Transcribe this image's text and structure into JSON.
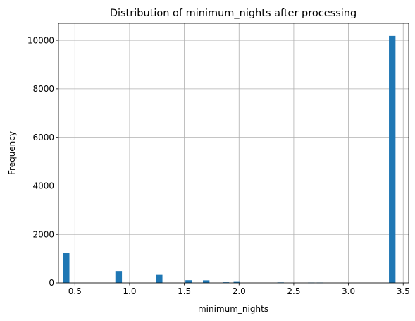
{
  "chart_data": {
    "type": "bar",
    "title": "Distribution of minimum_nights after processing",
    "xlabel": "minimum_nights",
    "ylabel": "Frequency",
    "xlim": [
      0.35,
      3.55
    ],
    "ylim": [
      0,
      10700
    ],
    "xticks": [
      0.5,
      1.0,
      1.5,
      2.0,
      2.5,
      3.0,
      3.5
    ],
    "xtick_labels": [
      "0.5",
      "1.0",
      "1.5",
      "2.0",
      "2.5",
      "3.0",
      "3.5"
    ],
    "yticks": [
      0,
      2000,
      4000,
      6000,
      8000,
      10000
    ],
    "ytick_labels": [
      "0",
      "2000",
      "4000",
      "6000",
      "8000",
      "10000"
    ],
    "grid": true,
    "bar_color": "#1f77b4",
    "bin_width": 0.06,
    "bins": [
      {
        "x": 0.42,
        "value": 1240
      },
      {
        "x": 0.9,
        "value": 490
      },
      {
        "x": 1.27,
        "value": 330
      },
      {
        "x": 1.54,
        "value": 110
      },
      {
        "x": 1.7,
        "value": 105
      },
      {
        "x": 1.88,
        "value": 25
      },
      {
        "x": 1.98,
        "value": 40
      },
      {
        "x": 2.38,
        "value": 20
      },
      {
        "x": 2.66,
        "value": 15
      },
      {
        "x": 2.74,
        "value": 15
      },
      {
        "x": 3.4,
        "value": 10180
      }
    ]
  }
}
